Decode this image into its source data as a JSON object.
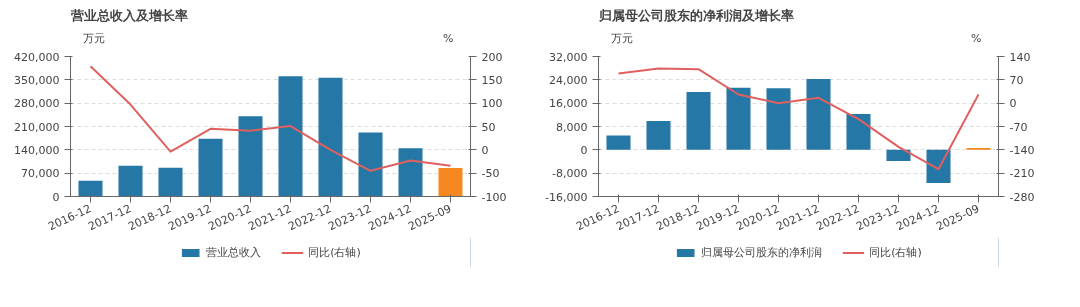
{
  "chart_data": [
    {
      "type": "bar",
      "title": "营业总收入及增长率",
      "ylabel": "万元",
      "y2label": "%",
      "categories": [
        "2016-12",
        "2017-12",
        "2018-12",
        "2019-12",
        "2020-12",
        "2021-12",
        "2022-12",
        "2023-12",
        "2024-12",
        "2025-09"
      ],
      "series": [
        {
          "name": "营业总收入",
          "type": "bar",
          "color": "#2577a6",
          "colors": [
            "#2577a6",
            "#2577a6",
            "#2577a6",
            "#2577a6",
            "#2577a6",
            "#2577a6",
            "#2577a6",
            "#2577a6",
            "#2577a6",
            "#f5891f"
          ],
          "values": [
            47500,
            92000,
            86500,
            173000,
            241000,
            361000,
            356000,
            192000,
            145000,
            85500
          ]
        },
        {
          "name": "同比(右轴)",
          "type": "line",
          "axis": "y2",
          "color": "#e06060",
          "values": [
            179,
            97,
            -4,
            45,
            41,
            51,
            0,
            -45,
            -23,
            -34
          ]
        }
      ],
      "ylim": [
        0,
        420000
      ],
      "yticks": [
        {
          "value": 0,
          "label": "0"
        },
        {
          "value": 70000,
          "label": "70,000"
        },
        {
          "value": 140000,
          "label": "140,000"
        },
        {
          "value": 210000,
          "label": "210,000"
        },
        {
          "value": 280000,
          "label": "280,000"
        },
        {
          "value": 350000,
          "label": "350,000"
        },
        {
          "value": 420000,
          "label": "420,000"
        }
      ],
      "y2lim": [
        -100,
        200
      ],
      "y2ticks": [
        -100,
        -50,
        0,
        50,
        100,
        150,
        200
      ],
      "grid": "y",
      "legend": "bottom",
      "marker": "none"
    },
    {
      "type": "bar",
      "title": "归属母公司股东的净利润及增长率",
      "ylabel": "万元",
      "y2label": "%",
      "categories": [
        "2016-12",
        "2017-12",
        "2018-12",
        "2019-12",
        "2020-12",
        "2021-12",
        "2022-12",
        "2023-12",
        "2024-12",
        "2025-09"
      ],
      "series": [
        {
          "name": "归属母公司股东的净利润",
          "type": "bar",
          "color": "#2577a6",
          "colors": [
            "#2577a6",
            "#2577a6",
            "#2577a6",
            "#2577a6",
            "#2577a6",
            "#2577a6",
            "#2577a6",
            "#2577a6",
            "#2577a6",
            "#f5891f"
          ],
          "values": [
            4900,
            9900,
            19800,
            21300,
            21100,
            24300,
            12300,
            -3800,
            -11400,
            600
          ]
        },
        {
          "name": "同比(右轴)",
          "type": "line",
          "axis": "y2",
          "color": "#e06060",
          "values": [
            89,
            104,
            102,
            26,
            0,
            16,
            -48,
            -131,
            -198,
            26
          ]
        }
      ],
      "ylim": [
        -16000,
        32000
      ],
      "yticks": [
        {
          "value": -16000,
          "label": "-16,000"
        },
        {
          "value": -8000,
          "label": "-8,000"
        },
        {
          "value": 0,
          "label": "0"
        },
        {
          "value": 8000,
          "label": "8,000"
        },
        {
          "value": 16000,
          "label": "16,000"
        },
        {
          "value": 24000,
          "label": "24,000"
        },
        {
          "value": 32000,
          "label": "32,000"
        }
      ],
      "y2lim": [
        -280,
        140
      ],
      "y2ticks": [
        -280,
        -210,
        -140,
        -70,
        0,
        70,
        140
      ],
      "grid": "y",
      "legend": "bottom",
      "marker": "none"
    }
  ]
}
